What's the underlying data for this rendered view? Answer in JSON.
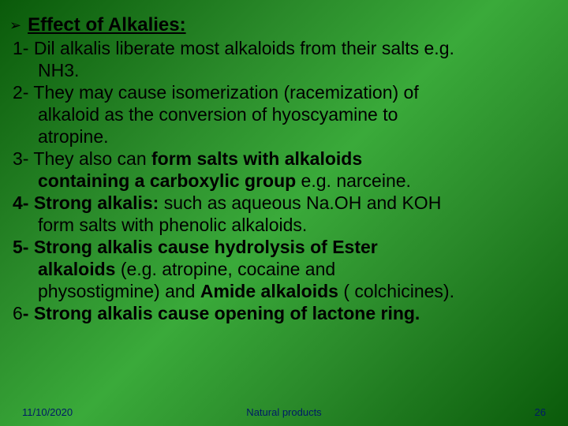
{
  "heading": "Effect of Alkalies:",
  "lines": [
    {
      "text": "1- Dil alkalis liberate most alkaloids from their salts e.g.",
      "bold": false,
      "indent": false
    },
    {
      "text": "NH3.",
      "bold": false,
      "indent": true
    },
    {
      "text": "2- They may cause isomerization (racemization) of",
      "bold": false,
      "indent": false
    },
    {
      "text": "alkaloid as the conversion of hyoscyamine to",
      "bold": false,
      "indent": true
    },
    {
      "text": "atropine.",
      "bold": false,
      "indent": true
    }
  ],
  "mixed": [
    {
      "parts": [
        {
          "t": "3- They also can ",
          "b": false
        },
        {
          "t": "form salts with alkaloids",
          "b": true
        }
      ],
      "indent": false
    },
    {
      "parts": [
        {
          "t": "containing a carboxylic group",
          "b": true
        },
        {
          "t": " e.g. narceine.",
          "b": false
        }
      ],
      "indent": true
    },
    {
      "parts": [
        {
          "t": "4- Strong alkalis:",
          "b": true
        },
        {
          "t": " such as aqueous Na.OH and KOH",
          "b": false
        }
      ],
      "indent": false
    },
    {
      "parts": [
        {
          "t": "form salts with phenolic alkaloids.",
          "b": false
        }
      ],
      "indent": true
    },
    {
      "parts": [
        {
          "t": "5- Strong alkalis cause hydrolysis of Ester",
          "b": true
        }
      ],
      "indent": false
    },
    {
      "parts": [
        {
          "t": "alkaloids",
          "b": true
        },
        {
          "t": " (e.g. atropine, cocaine and",
          "b": false
        }
      ],
      "indent": true
    },
    {
      "parts": [
        {
          "t": "physostigmine) and  ",
          "b": false
        },
        {
          "t": "Amide alkaloids",
          "b": true
        },
        {
          "t": " ( colchicines).",
          "b": false
        }
      ],
      "indent": true
    },
    {
      "parts": [
        {
          "t": "6",
          "b": false
        },
        {
          "t": "- Strong alkalis cause opening of lactone ring.",
          "b": true
        }
      ],
      "indent": false
    }
  ],
  "footer": {
    "date": "11/10/2020",
    "title": "Natural products",
    "page": "26"
  },
  "colors": {
    "footer_text": "#001a66"
  }
}
